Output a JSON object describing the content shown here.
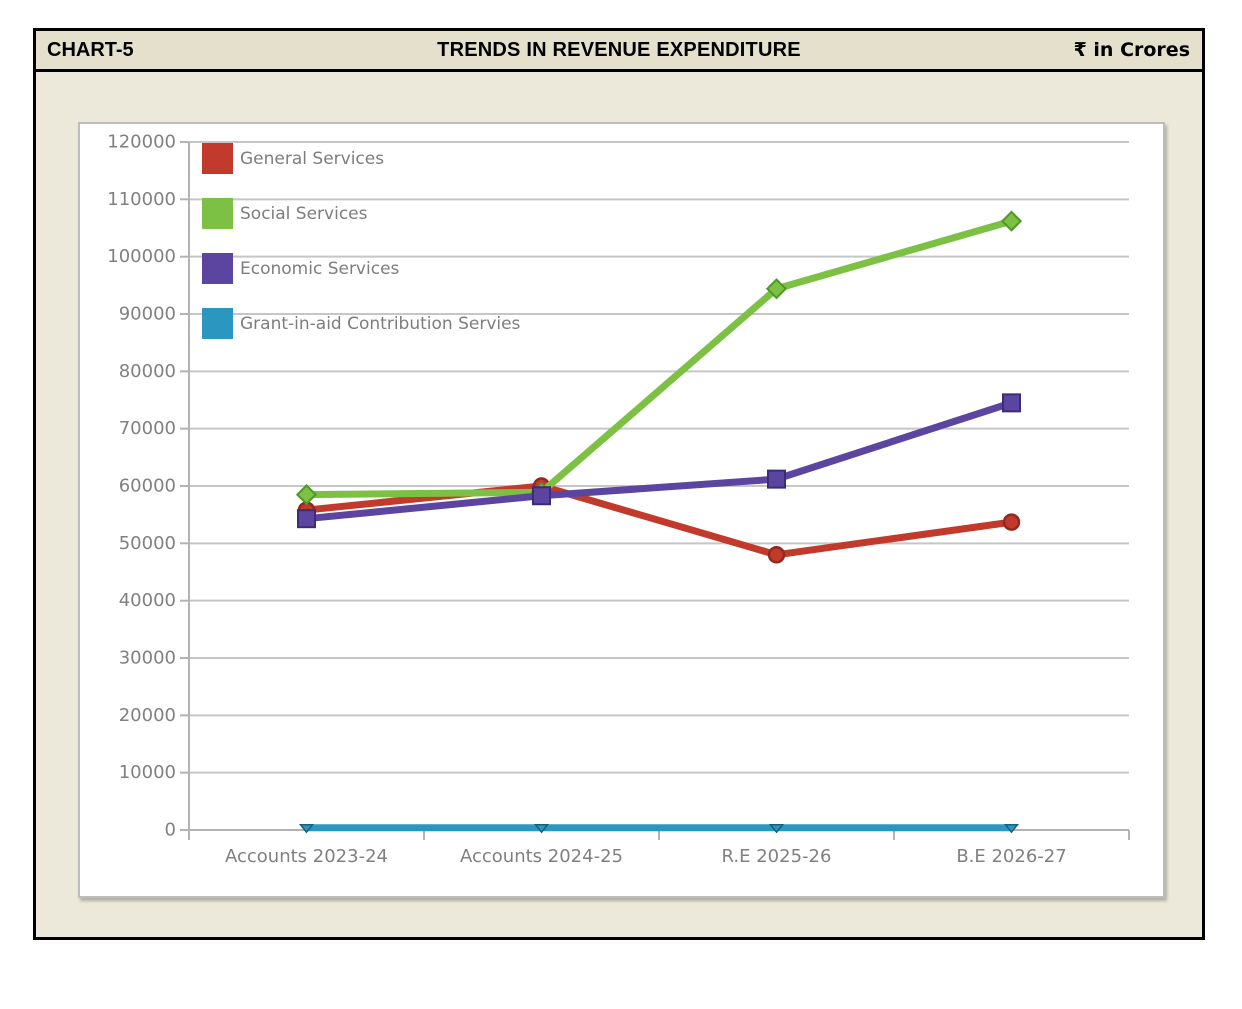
{
  "header": {
    "chart_label": "CHART-5",
    "title": "TRENDS IN REVENUE EXPENDITURE",
    "unit_label": "₹ in Crores"
  },
  "chart_data": {
    "type": "line",
    "title": "TRENDS IN REVENUE EXPENDITURE",
    "unit": "₹ in Crores",
    "categories": [
      "Accounts 2023-24",
      "Accounts 2024-25",
      "R.E 2025-26",
      "B.E 2026-27"
    ],
    "series": [
      {
        "name": "General Services",
        "color": "#c23a2c",
        "edge_color": "#8e2a1f",
        "marker": "circle",
        "values": [
          55800,
          60000,
          48000,
          53700
        ]
      },
      {
        "name": "Social Services",
        "color": "#7cc143",
        "edge_color": "#4f9727",
        "marker": "diamond",
        "values": [
          58500,
          58900,
          94400,
          106200
        ]
      },
      {
        "name": "Economic Services",
        "color": "#5b45a0",
        "edge_color": "#3c2c77",
        "marker": "square",
        "values": [
          54300,
          58300,
          61200,
          74500
        ]
      },
      {
        "name": "Grant-in-aid Contribution Servies",
        "color": "#2b97c1",
        "edge_color": "#17607e",
        "marker": "triangle-down",
        "values": [
          400,
          400,
          400,
          400
        ]
      }
    ],
    "ylim": [
      0,
      120000
    ],
    "ytick_step": 10000,
    "grid": true,
    "legend_position": "top-left",
    "grid_color": "#c6c6c6",
    "axis_color": "#b3b3b3",
    "tick_label_color": "#808080",
    "legend_text_color": "#7d7d7d"
  }
}
